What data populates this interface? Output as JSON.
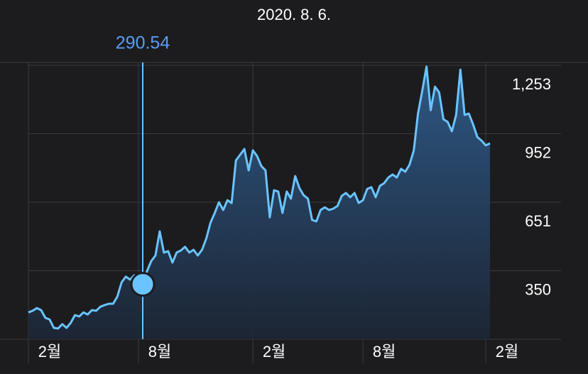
{
  "chart_data": {
    "type": "line",
    "title": "2020. 8. 6.",
    "series": [
      {
        "color": "#6ac4ff",
        "values": [
          167,
          174,
          186,
          177,
          143,
          136,
          99,
          96,
          115,
          99,
          121,
          155,
          149,
          167,
          158,
          177,
          174,
          192,
          199,
          205,
          205,
          236,
          299,
          324,
          311,
          330,
          317,
          290.54,
          348,
          392,
          417,
          523,
          430,
          436,
          386,
          430,
          439,
          455,
          430,
          442,
          417,
          442,
          492,
          561,
          604,
          651,
          617,
          660,
          648,
          835,
          860,
          885,
          791,
          879,
          854,
          810,
          791,
          585,
          704,
          698,
          604,
          698,
          667,
          766,
          713,
          682,
          667,
          573,
          567,
          617,
          629,
          617,
          623,
          635,
          679,
          692,
          673,
          692,
          648,
          660,
          710,
          717,
          673,
          723,
          735,
          760,
          773,
          760,
          798,
          785,
          816,
          879,
          1041,
          1141,
          1247,
          1056,
          1159,
          1134,
          1016,
          1004,
          963,
          1035,
          1234,
          1035,
          1041,
          994,
          938,
          922,
          901,
          910
        ]
      }
    ],
    "selected_index": 27,
    "xlim": [
      0,
      109
    ],
    "xticks": [
      {
        "value": 0,
        "label": "2월"
      },
      {
        "value": 26,
        "label": "8월"
      },
      {
        "value": 53,
        "label": "2월"
      },
      {
        "value": 79,
        "label": "8월"
      },
      {
        "value": 108,
        "label": "2월"
      }
    ],
    "ylim": [
      49,
      1253
    ],
    "yticks": [
      350,
      651,
      952,
      {
        "value": 1253,
        "label": "1,253"
      }
    ],
    "grid": true
  }
}
